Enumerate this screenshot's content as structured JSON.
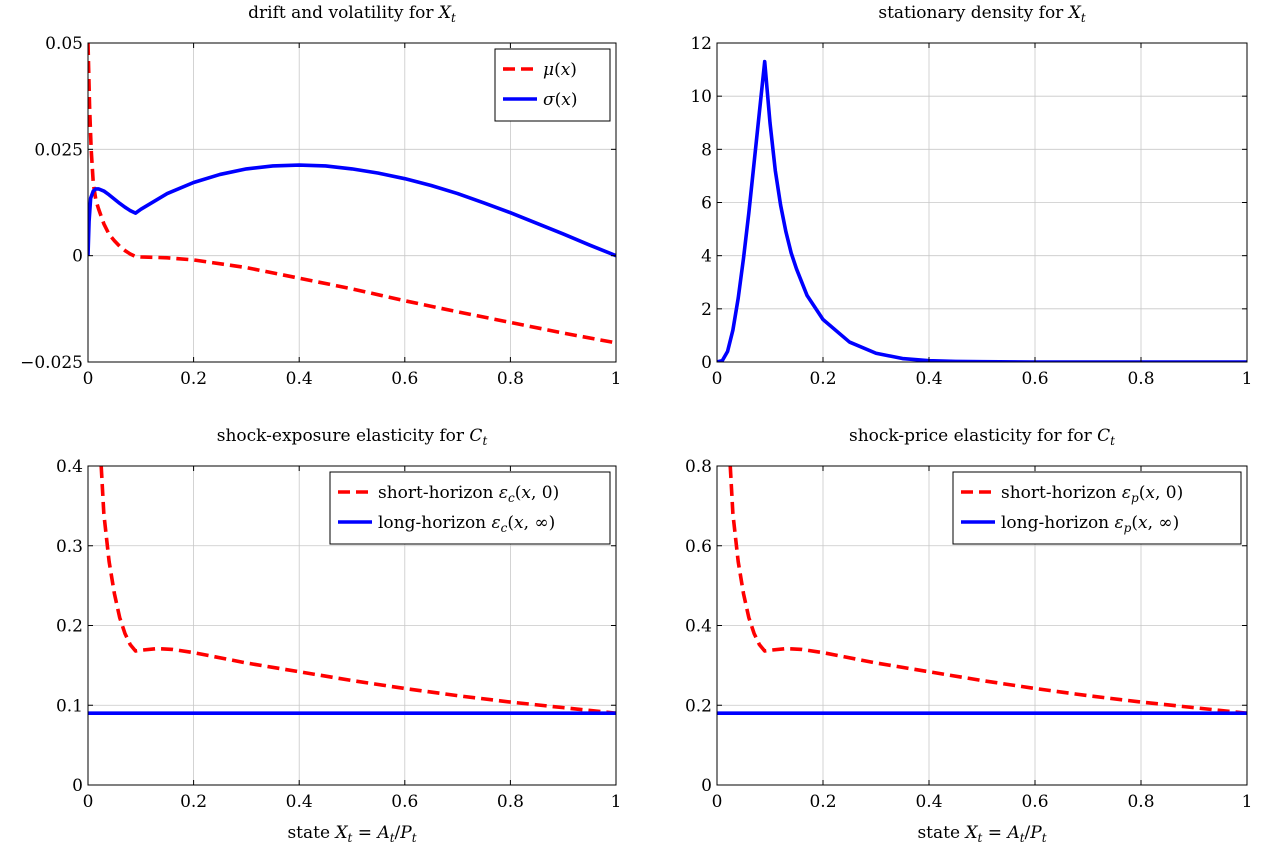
{
  "chart_data": [
    {
      "type": "line",
      "title": "drift and volatility for X_t",
      "title_parts": {
        "text": "drift and volatility for ",
        "var": "X",
        "sub": "t"
      },
      "xlabel": "",
      "ylabel": "",
      "xlim": [
        0,
        1
      ],
      "ylim": [
        -0.025,
        0.05
      ],
      "xticks": [
        "0",
        "0.2",
        "0.4",
        "0.6",
        "0.8",
        "1"
      ],
      "xtick_values": [
        0,
        0.2,
        0.4,
        0.6,
        0.8,
        1
      ],
      "yticks": [
        "−0.025",
        "0",
        "0.025",
        "0.05"
      ],
      "ytick_values": [
        -0.025,
        0,
        0.025,
        0.05
      ],
      "grid": true,
      "legend_position": "top-right",
      "series": [
        {
          "name": "μ(x)",
          "color": "#ff0000",
          "style": "dashed",
          "x": [
            0.0,
            0.003,
            0.006,
            0.01,
            0.015,
            0.02,
            0.03,
            0.04,
            0.05,
            0.06,
            0.07,
            0.08,
            0.09,
            0.1,
            0.15,
            0.2,
            0.3,
            0.4,
            0.5,
            0.6,
            0.7,
            0.8,
            0.9,
            1.0
          ],
          "y": [
            0.05,
            0.035,
            0.025,
            0.017,
            0.013,
            0.011,
            0.0075,
            0.005,
            0.0035,
            0.0022,
            0.0012,
            0.0004,
            -0.0002,
            -0.0003,
            -0.0005,
            -0.001,
            -0.0028,
            -0.0053,
            -0.0078,
            -0.0106,
            -0.0132,
            -0.0157,
            -0.0182,
            -0.0205
          ]
        },
        {
          "name": "σ(x)",
          "color": "#0000ff",
          "style": "solid",
          "x": [
            0.0,
            0.002,
            0.005,
            0.01,
            0.015,
            0.02,
            0.03,
            0.04,
            0.05,
            0.06,
            0.07,
            0.08,
            0.09,
            0.1,
            0.15,
            0.2,
            0.25,
            0.3,
            0.35,
            0.4,
            0.45,
            0.5,
            0.55,
            0.6,
            0.65,
            0.7,
            0.75,
            0.8,
            0.85,
            0.9,
            0.95,
            1.0
          ],
          "y": [
            0.0,
            0.008,
            0.0135,
            0.0152,
            0.0157,
            0.0157,
            0.0152,
            0.0143,
            0.0133,
            0.0123,
            0.0114,
            0.0106,
            0.01,
            0.0109,
            0.0146,
            0.0172,
            0.0191,
            0.0204,
            0.0211,
            0.0213,
            0.0211,
            0.0204,
            0.0194,
            0.0181,
            0.0165,
            0.0146,
            0.0124,
            0.0101,
            0.0076,
            0.0051,
            0.0025,
            0.0
          ]
        }
      ]
    },
    {
      "type": "line",
      "title": "stationary density for X_t",
      "title_parts": {
        "text": "stationary density for ",
        "var": "X",
        "sub": "t"
      },
      "xlabel": "",
      "ylabel": "",
      "xlim": [
        0,
        1
      ],
      "ylim": [
        0,
        12
      ],
      "xticks": [
        "0",
        "0.2",
        "0.4",
        "0.6",
        "0.8",
        "1"
      ],
      "xtick_values": [
        0,
        0.2,
        0.4,
        0.6,
        0.8,
        1
      ],
      "yticks": [
        "0",
        "2",
        "4",
        "6",
        "8",
        "10",
        "12"
      ],
      "ytick_values": [
        0,
        2,
        4,
        6,
        8,
        10,
        12
      ],
      "grid": true,
      "series": [
        {
          "name": "",
          "color": "#0000ff",
          "style": "solid",
          "x": [
            0.0,
            0.01,
            0.02,
            0.03,
            0.04,
            0.05,
            0.06,
            0.07,
            0.08,
            0.09,
            0.1,
            0.11,
            0.12,
            0.13,
            0.14,
            0.15,
            0.17,
            0.2,
            0.25,
            0.3,
            0.35,
            0.4,
            0.45,
            0.5,
            0.6,
            0.8,
            1.0
          ],
          "y": [
            0.0,
            0.05,
            0.4,
            1.2,
            2.4,
            3.9,
            5.6,
            7.5,
            9.4,
            11.3,
            9.0,
            7.2,
            5.9,
            4.9,
            4.1,
            3.5,
            2.5,
            1.6,
            0.75,
            0.33,
            0.13,
            0.05,
            0.02,
            0.01,
            0.0,
            0.0,
            0.0
          ]
        }
      ]
    },
    {
      "type": "line",
      "title": "shock-exposure elasticity for C_t",
      "title_parts": {
        "text": "shock-exposure elasticity for ",
        "var": "C",
        "sub": "t"
      },
      "xlabel": "state X_t = A_t/P_t",
      "ylabel": "",
      "xlim": [
        0,
        1
      ],
      "ylim": [
        0,
        0.4
      ],
      "xticks": [
        "0",
        "0.2",
        "0.4",
        "0.6",
        "0.8",
        "1"
      ],
      "xtick_values": [
        0,
        0.2,
        0.4,
        0.6,
        0.8,
        1
      ],
      "yticks": [
        "0",
        "0.1",
        "0.2",
        "0.3",
        "0.4"
      ],
      "ytick_values": [
        0,
        0.1,
        0.2,
        0.3,
        0.4
      ],
      "grid": true,
      "legend_position": "top-right",
      "series": [
        {
          "name": "short-horizon ε_c(x, 0)",
          "color": "#ff0000",
          "style": "dashed",
          "x": [
            0.025,
            0.03,
            0.04,
            0.05,
            0.06,
            0.07,
            0.08,
            0.09,
            0.1,
            0.13,
            0.16,
            0.2,
            0.3,
            0.4,
            0.5,
            0.6,
            0.7,
            0.8,
            0.9,
            1.0
          ],
          "y": [
            0.4,
            0.34,
            0.28,
            0.24,
            0.21,
            0.19,
            0.176,
            0.168,
            0.169,
            0.171,
            0.17,
            0.166,
            0.153,
            0.142,
            0.131,
            0.121,
            0.112,
            0.104,
            0.097,
            0.09
          ]
        },
        {
          "name": "long-horizon ε_c(x, ∞)",
          "color": "#0000ff",
          "style": "solid",
          "x": [
            0,
            1
          ],
          "y": [
            0.09,
            0.09
          ]
        }
      ]
    },
    {
      "type": "line",
      "title": "shock-price elasticity for for C_t",
      "title_parts": {
        "text": "shock-price elasticity for for ",
        "var": "C",
        "sub": "t"
      },
      "xlabel": "state X_t = A_t/P_t",
      "ylabel": "",
      "xlim": [
        0,
        1
      ],
      "ylim": [
        0,
        0.8
      ],
      "xticks": [
        "0",
        "0.2",
        "0.4",
        "0.6",
        "0.8",
        "1"
      ],
      "xtick_values": [
        0,
        0.2,
        0.4,
        0.6,
        0.8,
        1
      ],
      "yticks": [
        "0",
        "0.2",
        "0.4",
        "0.6",
        "0.8"
      ],
      "ytick_values": [
        0,
        0.2,
        0.4,
        0.6,
        0.8
      ],
      "grid": true,
      "legend_position": "top-right",
      "series": [
        {
          "name": "short-horizon ε_p(x, 0)",
          "color": "#ff0000",
          "style": "dashed",
          "x": [
            0.025,
            0.03,
            0.04,
            0.05,
            0.06,
            0.07,
            0.08,
            0.09,
            0.1,
            0.13,
            0.16,
            0.2,
            0.3,
            0.4,
            0.5,
            0.6,
            0.7,
            0.8,
            0.9,
            1.0
          ],
          "y": [
            0.8,
            0.68,
            0.56,
            0.48,
            0.42,
            0.38,
            0.352,
            0.336,
            0.338,
            0.342,
            0.34,
            0.332,
            0.306,
            0.284,
            0.262,
            0.242,
            0.224,
            0.208,
            0.194,
            0.18
          ]
        },
        {
          "name": "long-horizon ε_p(x, ∞)",
          "color": "#0000ff",
          "style": "solid",
          "x": [
            0,
            1
          ],
          "y": [
            0.18,
            0.18
          ]
        }
      ]
    }
  ]
}
